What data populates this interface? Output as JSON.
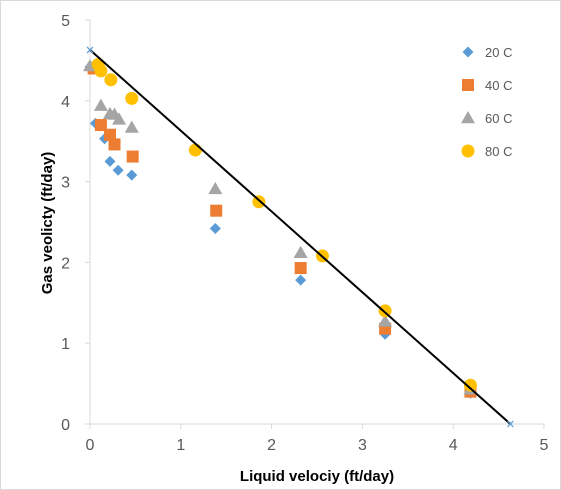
{
  "chart_data": {
    "type": "scatter",
    "title": "",
    "xlabel": "Liquid velociy (ft/day)",
    "ylabel": "Gas veolicty (ft/day)",
    "xlim": [
      0,
      5
    ],
    "ylim": [
      0,
      5
    ],
    "xticks": [
      "0",
      "1",
      "2",
      "3",
      "4",
      "5"
    ],
    "yticks": [
      "0",
      "1",
      "2",
      "3",
      "4",
      "5"
    ],
    "grid": false,
    "legend_position": "right",
    "series": [
      {
        "name": "20 C",
        "color": "#5b9bd5",
        "marker": "diamond",
        "points": [
          [
            0.0,
            4.42
          ],
          [
            0.06,
            3.72
          ],
          [
            0.16,
            3.53
          ],
          [
            0.22,
            3.25
          ],
          [
            0.31,
            3.14
          ],
          [
            0.46,
            3.08
          ],
          [
            1.38,
            2.42
          ],
          [
            2.32,
            1.78
          ],
          [
            3.25,
            1.11
          ],
          [
            4.19,
            0.38
          ]
        ]
      },
      {
        "name": "40 C",
        "color": "#ed7d31",
        "marker": "square",
        "points": [
          [
            0.04,
            4.4
          ],
          [
            0.12,
            3.7
          ],
          [
            0.22,
            3.58
          ],
          [
            0.27,
            3.46
          ],
          [
            0.47,
            3.31
          ],
          [
            1.39,
            2.64
          ],
          [
            2.32,
            1.93
          ],
          [
            3.25,
            1.18
          ],
          [
            4.19,
            0.4
          ]
        ]
      },
      {
        "name": "60 C",
        "color": "#a5a5a5",
        "marker": "triangle",
        "points": [
          [
            0.0,
            4.43
          ],
          [
            0.12,
            3.94
          ],
          [
            0.22,
            3.84
          ],
          [
            0.27,
            3.83
          ],
          [
            0.32,
            3.77
          ],
          [
            0.46,
            3.67
          ],
          [
            1.38,
            2.91
          ],
          [
            2.32,
            2.12
          ],
          [
            3.25,
            1.27
          ],
          [
            4.19,
            0.43
          ]
        ]
      },
      {
        "name": "80 C",
        "color": "#ffc000",
        "marker": "circle",
        "points": [
          [
            0.09,
            4.45
          ],
          [
            0.12,
            4.37
          ],
          [
            0.23,
            4.26
          ],
          [
            0.46,
            4.03
          ],
          [
            1.16,
            3.39
          ],
          [
            1.86,
            2.75
          ],
          [
            2.56,
            2.08
          ],
          [
            3.25,
            1.4
          ],
          [
            4.19,
            0.48
          ]
        ]
      }
    ],
    "line": {
      "color": "#000000",
      "points": [
        [
          0.0,
          4.63
        ],
        [
          4.63,
          0.0
        ]
      ]
    }
  }
}
